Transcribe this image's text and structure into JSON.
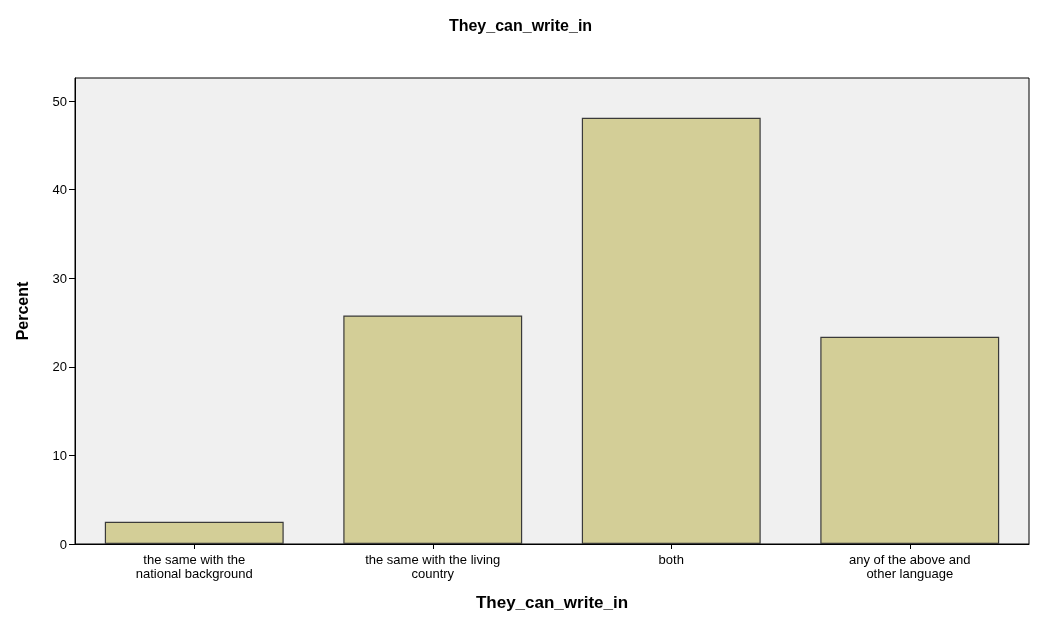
{
  "chart_data": {
    "type": "bar",
    "title": "They_can_write_in",
    "xlabel": "They_can_write_in",
    "ylabel": "Percent",
    "categories": [
      "the same with the\nnational background",
      "the same with the living\ncountry",
      "both",
      "any of the above and\nother language"
    ],
    "values": [
      2.5,
      25.8,
      48.1,
      23.4
    ],
    "color": "#d3ce97",
    "ylim": [
      0,
      52.6
    ],
    "yticks": [
      0,
      10,
      20,
      30,
      40,
      50
    ],
    "grid": false
  }
}
